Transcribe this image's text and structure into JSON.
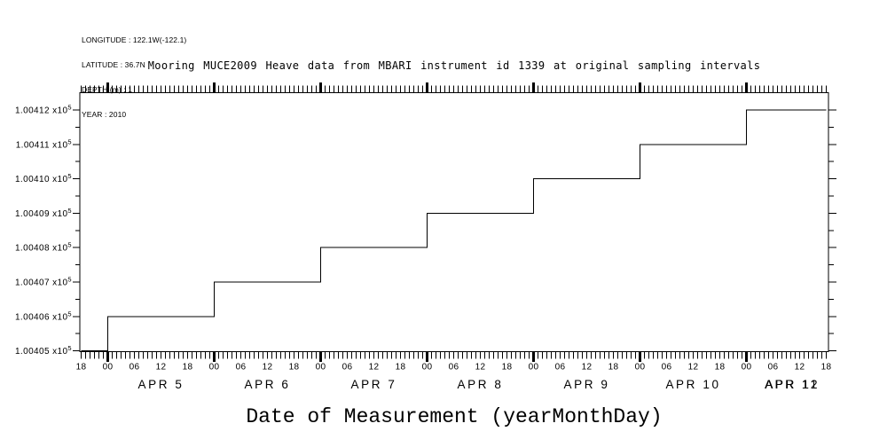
{
  "page": {
    "background": "#ffffff",
    "ink": "#000000"
  },
  "header": {
    "metadata_lines": [
      "LONGITUDE : 122.1W(-122.1)",
      "LATITUDE : 36.7N",
      "DEPTH (m) : 1",
      "YEAR : 2010"
    ]
  },
  "chart_data": {
    "type": "line",
    "subtype": "step",
    "title": "Mooring MUCE2009 Heave data from MBARI instrument id 1339 at original sampling intervals",
    "xlabel": "Date of Measurement (yearMonthDay)",
    "ylabel": "",
    "grid": false,
    "legend": "none",
    "x_axis": {
      "start": "2010-04-05 18:00",
      "end": "2010-04-12 18:00",
      "minor_tick_interval_hours": 1,
      "labeled_tick_interval_hours": 6,
      "hour_labels": [
        "18",
        "00",
        "06",
        "12",
        "18",
        "00",
        "06",
        "12",
        "18",
        "00",
        "06",
        "12",
        "18",
        "00",
        "06",
        "12",
        "18",
        "00",
        "06",
        "12",
        "18",
        "00",
        "06",
        "12",
        "18",
        "00",
        "06",
        "12",
        "18"
      ],
      "date_labels": [
        "APR 5",
        "APR 6",
        "APR 7",
        "APR 8",
        "APR 9",
        "APR 10",
        "APR 11",
        "APR 12"
      ]
    },
    "y_axis": {
      "tick_values": [
        100405,
        100406,
        100407,
        100408,
        100409,
        100410,
        100411,
        100412
      ],
      "tick_mantissas": [
        "1.00405",
        "1.00406",
        "1.00407",
        "1.00408",
        "1.00409",
        "1.00410",
        "1.00411",
        "1.00412"
      ],
      "exponent_prefix": "x10",
      "exponent": "5",
      "minor_tick_interval": 0.5,
      "range": [
        100404.9,
        100412.5
      ]
    },
    "series": [
      {
        "name": "heave",
        "points": [
          {
            "time": "2010-04-05 18:00",
            "t_hours": 0,
            "value": 100405
          },
          {
            "time": "2010-04-06 00:00",
            "t_hours": 6,
            "value": 100406
          },
          {
            "time": "2010-04-07 00:00",
            "t_hours": 30,
            "value": 100407
          },
          {
            "time": "2010-04-08 00:00",
            "t_hours": 54,
            "value": 100408
          },
          {
            "time": "2010-04-09 00:00",
            "t_hours": 78,
            "value": 100409
          },
          {
            "time": "2010-04-10 00:00",
            "t_hours": 102,
            "value": 100410
          },
          {
            "time": "2010-04-11 00:00",
            "t_hours": 126,
            "value": 100411
          },
          {
            "time": "2010-04-12 00:00",
            "t_hours": 150,
            "value": 100412
          },
          {
            "time": "2010-04-12 18:00",
            "t_hours": 168,
            "value": 100412
          }
        ]
      }
    ]
  }
}
